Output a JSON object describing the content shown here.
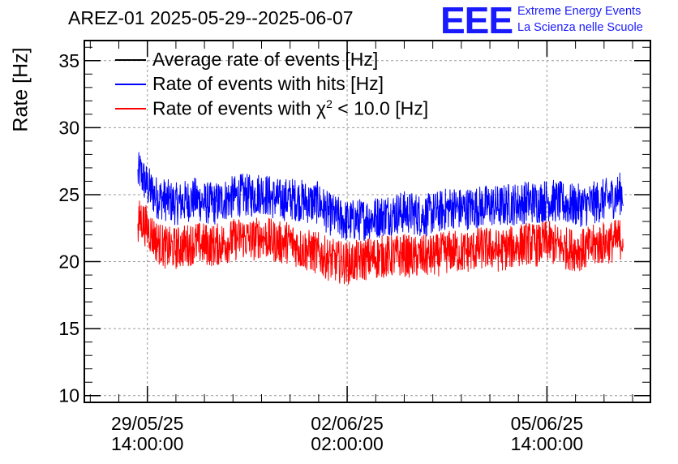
{
  "chart_data": {
    "type": "line",
    "title": "AREZ-01 2025-05-29--2025-06-07",
    "ylabel": "Rate [Hz]",
    "xlabel": "",
    "ylim": [
      9.5,
      36.5
    ],
    "yticks": [
      10,
      15,
      20,
      25,
      30,
      35
    ],
    "ytick_labels": [
      "10",
      "15",
      "20",
      "25",
      "30",
      "35"
    ],
    "x_unit": "hours since 2025-05-28 00:00",
    "xlim": [
      35.5,
      273.5
    ],
    "xticks": [
      {
        "x": 62,
        "line1": "29/05/25",
        "line2": "14:00:00"
      },
      {
        "x": 146,
        "line1": "02/06/25",
        "line2": "02:00:00"
      },
      {
        "x": 230,
        "line1": "05/06/25",
        "line2": "14:00:00"
      }
    ],
    "grid": true,
    "legend_position": "top-left",
    "series": [
      {
        "name": "Average rate of events [Hz]",
        "color": "#000000",
        "x": [],
        "values": []
      },
      {
        "name": "Rate of events with hits [Hz]",
        "color": "#0000ff",
        "x": [
          58,
          62,
          66,
          70,
          74,
          78,
          82,
          86,
          90,
          94,
          98,
          102,
          106,
          110,
          114,
          118,
          122,
          126,
          130,
          134,
          138,
          142,
          146,
          150,
          154,
          158,
          162,
          166,
          170,
          174,
          178,
          182,
          186,
          190,
          194,
          198,
          202,
          206,
          210,
          214,
          218,
          222,
          226,
          230,
          234,
          238,
          242,
          246,
          250,
          254,
          258,
          262
        ],
        "values": [
          27.0,
          25.6,
          24.8,
          24.6,
          24.3,
          24.5,
          24.7,
          24.4,
          24.3,
          24.6,
          24.8,
          25.0,
          24.9,
          25.2,
          24.8,
          24.6,
          24.7,
          24.6,
          24.4,
          24.4,
          23.6,
          23.3,
          23.0,
          23.1,
          23.2,
          23.3,
          23.5,
          23.6,
          23.7,
          23.6,
          23.4,
          23.6,
          23.8,
          24.1,
          23.9,
          24.0,
          24.1,
          24.2,
          24.1,
          24.3,
          24.3,
          24.5,
          24.4,
          24.6,
          24.5,
          24.3,
          24.2,
          24.2,
          24.4,
          24.6,
          24.8,
          25.2
        ],
        "noise_band": 1.6
      },
      {
        "name": "Rate of events with χ² < 10.0 [Hz]",
        "color": "#ff0000",
        "x": [
          58,
          62,
          66,
          70,
          74,
          78,
          82,
          86,
          90,
          94,
          98,
          102,
          106,
          110,
          114,
          118,
          122,
          126,
          130,
          134,
          138,
          142,
          146,
          150,
          154,
          158,
          162,
          166,
          170,
          174,
          178,
          182,
          186,
          190,
          194,
          198,
          202,
          206,
          210,
          214,
          218,
          222,
          226,
          230,
          234,
          238,
          242,
          246,
          250,
          254,
          258,
          262
        ],
        "values": [
          23.5,
          22.5,
          21.5,
          21.0,
          21.0,
          21.2,
          21.4,
          21.3,
          21.2,
          21.4,
          21.6,
          21.8,
          21.6,
          21.9,
          21.6,
          21.4,
          21.5,
          21.0,
          20.8,
          20.6,
          20.2,
          20.0,
          19.9,
          20.0,
          20.2,
          20.3,
          20.4,
          20.4,
          20.5,
          20.3,
          20.4,
          20.4,
          20.6,
          20.8,
          20.7,
          20.8,
          21.0,
          21.0,
          20.8,
          21.0,
          21.2,
          21.4,
          21.2,
          21.5,
          21.2,
          21.0,
          20.9,
          20.9,
          21.2,
          21.4,
          21.5,
          21.8
        ],
        "noise_band": 1.6
      }
    ]
  },
  "legend": {
    "entry_avg": "Average rate of events [Hz]",
    "entry_hits": "Rate of events with hits [Hz]",
    "entry_chi_prefix": "Rate of events with χ",
    "entry_chi_sup": "2",
    "entry_chi_suffix": " < 10.0 [Hz]"
  },
  "logo": {
    "mark": "EEE",
    "line1": "Extreme Energy Events",
    "line2": "La Scienza nelle Scuole",
    "color": "#1a1aff"
  }
}
